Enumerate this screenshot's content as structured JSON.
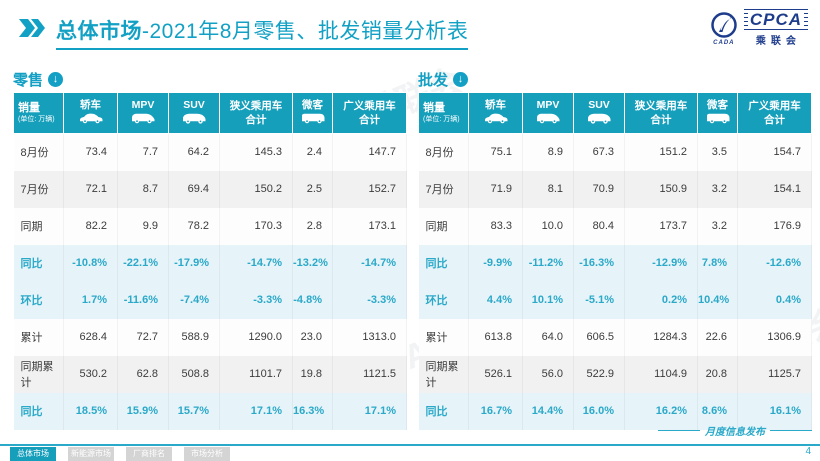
{
  "colors": {
    "accent": "#14a0c4",
    "table_header_bg": "#169fbb",
    "percent_text": "#2aa9c9",
    "logo_navy": "#1e3c8c",
    "tab_active_bg": "#169fbb",
    "tab_inactive_bg": "#d4d4d4",
    "highlight_row_bg": "#e6f3f8"
  },
  "header": {
    "title_bold": "总体市场",
    "title_rest": "-2021年8月零售、批发销量分析表",
    "logo": {
      "acronym": "CPCA",
      "emblem_caption": "CADA",
      "chinese_name": "乘联会"
    }
  },
  "watermark": "CPCA 乘联会",
  "tables": [
    {
      "section_label": "零售",
      "unit_line1": "销量",
      "unit_line2": "(单位: 万辆)",
      "columns": [
        {
          "label": "轿车",
          "icon": "sedan-icon"
        },
        {
          "label": "MPV",
          "icon": "mpv-icon"
        },
        {
          "label": "SUV",
          "icon": "suv-icon"
        },
        {
          "label": "狭义乘用车",
          "label2": "合计"
        },
        {
          "label": "微客",
          "icon": "minibus-icon"
        },
        {
          "label": "广义乘用车",
          "label2": "合计"
        }
      ],
      "rows": [
        {
          "label": "8月份",
          "shade": "white",
          "percent": false,
          "values": [
            "73.4",
            "7.7",
            "64.2",
            "145.3",
            "2.4",
            "147.7"
          ]
        },
        {
          "label": "7月份",
          "shade": "gray",
          "percent": false,
          "values": [
            "72.1",
            "8.7",
            "69.4",
            "150.2",
            "2.5",
            "152.7"
          ]
        },
        {
          "label": "同期",
          "shade": "white",
          "percent": false,
          "values": [
            "82.2",
            "9.9",
            "78.2",
            "170.3",
            "2.8",
            "173.1"
          ]
        },
        {
          "label": "同比",
          "shade": "blue",
          "percent": true,
          "values": [
            "-10.8%",
            "-22.1%",
            "-17.9%",
            "-14.7%",
            "-13.2%",
            "-14.7%"
          ]
        },
        {
          "label": "环比",
          "shade": "blue",
          "percent": true,
          "values": [
            "1.7%",
            "-11.6%",
            "-7.4%",
            "-3.3%",
            "-4.8%",
            "-3.3%"
          ]
        },
        {
          "label": "累计",
          "shade": "white",
          "percent": false,
          "values": [
            "628.4",
            "72.7",
            "588.9",
            "1290.0",
            "23.0",
            "1313.0"
          ]
        },
        {
          "label": "同期累计",
          "shade": "gray",
          "percent": false,
          "values": [
            "530.2",
            "62.8",
            "508.8",
            "1101.7",
            "19.8",
            "1121.5"
          ]
        },
        {
          "label": "同比",
          "shade": "blue",
          "percent": true,
          "values": [
            "18.5%",
            "15.9%",
            "15.7%",
            "17.1%",
            "16.3%",
            "17.1%"
          ]
        }
      ]
    },
    {
      "section_label": "批发",
      "unit_line1": "销量",
      "unit_line2": "(单位: 万辆)",
      "columns": [
        {
          "label": "轿车",
          "icon": "sedan-icon"
        },
        {
          "label": "MPV",
          "icon": "mpv-icon"
        },
        {
          "label": "SUV",
          "icon": "suv-icon"
        },
        {
          "label": "狭义乘用车",
          "label2": "合计"
        },
        {
          "label": "微客",
          "icon": "minibus-icon"
        },
        {
          "label": "广义乘用车",
          "label2": "合计"
        }
      ],
      "rows": [
        {
          "label": "8月份",
          "shade": "white",
          "percent": false,
          "values": [
            "75.1",
            "8.9",
            "67.3",
            "151.2",
            "3.5",
            "154.7"
          ]
        },
        {
          "label": "7月份",
          "shade": "gray",
          "percent": false,
          "values": [
            "71.9",
            "8.1",
            "70.9",
            "150.9",
            "3.2",
            "154.1"
          ]
        },
        {
          "label": "同期",
          "shade": "white",
          "percent": false,
          "values": [
            "83.3",
            "10.0",
            "80.4",
            "173.7",
            "3.2",
            "176.9"
          ]
        },
        {
          "label": "同比",
          "shade": "blue",
          "percent": true,
          "values": [
            "-9.9%",
            "-11.2%",
            "-16.3%",
            "-12.9%",
            "7.8%",
            "-12.6%"
          ]
        },
        {
          "label": "环比",
          "shade": "blue",
          "percent": true,
          "values": [
            "4.4%",
            "10.1%",
            "-5.1%",
            "0.2%",
            "10.4%",
            "0.4%"
          ]
        },
        {
          "label": "累计",
          "shade": "white",
          "percent": false,
          "values": [
            "613.8",
            "64.0",
            "606.5",
            "1284.3",
            "22.6",
            "1306.9"
          ]
        },
        {
          "label": "同期累计",
          "shade": "gray",
          "percent": false,
          "values": [
            "526.1",
            "56.0",
            "522.9",
            "1104.9",
            "20.8",
            "1125.7"
          ]
        },
        {
          "label": "同比",
          "shade": "blue",
          "percent": true,
          "values": [
            "16.7%",
            "14.4%",
            "16.0%",
            "16.2%",
            "8.6%",
            "16.1%"
          ]
        }
      ]
    }
  ],
  "footer": {
    "tabs": [
      {
        "label": "总体市场",
        "active": true
      },
      {
        "label": "新能源市场",
        "active": false
      },
      {
        "label": "厂商排名",
        "active": false
      },
      {
        "label": "市场分析",
        "active": false
      }
    ],
    "release_label": "月度信息发布",
    "page_number": "4"
  }
}
